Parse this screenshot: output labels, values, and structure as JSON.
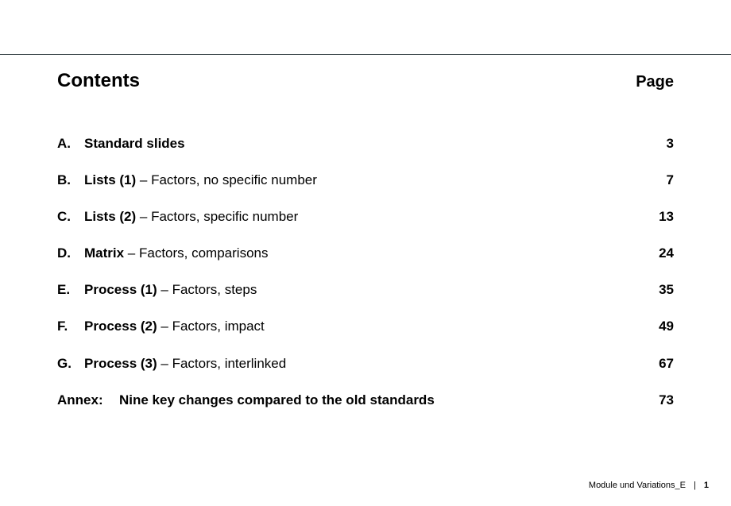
{
  "header": {
    "title": "Contents",
    "page_col": "Page"
  },
  "toc": [
    {
      "marker": "A.",
      "bold": "Standard slides",
      "desc": "",
      "page": "3"
    },
    {
      "marker": "B.",
      "bold": "Lists (1)",
      "desc": " – Factors, no specific number",
      "page": "7"
    },
    {
      "marker": "C.",
      "bold": "Lists (2)",
      "desc": " – Factors, specific number",
      "page": "13"
    },
    {
      "marker": "D.",
      "bold": "Matrix",
      "desc": " – Factors, comparisons",
      "page": "24"
    },
    {
      "marker": "E.",
      "bold": "Process (1)",
      "desc": " – Factors, steps",
      "page": "35"
    },
    {
      "marker": "F.",
      "bold": "Process (2)",
      "desc": " – Factors, impact",
      "page": "49"
    },
    {
      "marker": "G.",
      "bold": "Process (3)",
      "desc": " – Factors, interlinked",
      "page": "67"
    }
  ],
  "annex": {
    "marker": "Annex:",
    "bold": "Nine key changes compared to the old standards",
    "page": "73"
  },
  "footer": {
    "doc": "Module und Variations_E",
    "sep": "|",
    "page_number": "1"
  },
  "style": {
    "rule_color": "#2e3a3f",
    "text_color": "#000000",
    "background": "#ffffff",
    "title_fontsize": 24,
    "row_fontsize": 17,
    "footer_fontsize": 11
  }
}
